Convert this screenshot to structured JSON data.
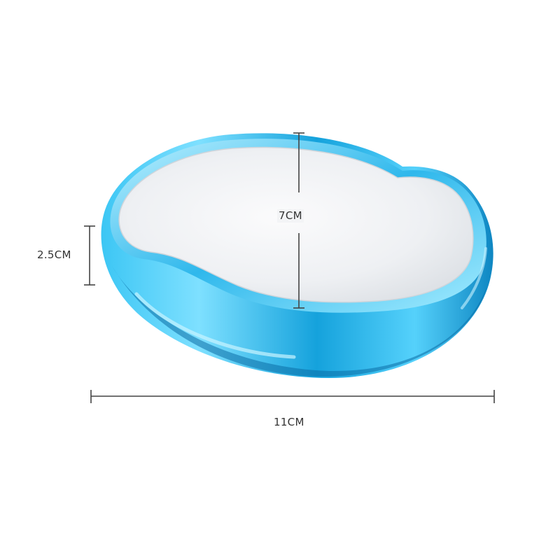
{
  "dimensions": {
    "height_label": "2.5CM",
    "depth_label": "7CM",
    "width_label": "11CM"
  },
  "colors": {
    "shell_blue": "#1ba9df",
    "shell_highlight": "#8fe3ff",
    "shell_dark": "#0a6fa8",
    "glass_surface": "#f2f3f5",
    "dimension_line": "#444444"
  }
}
